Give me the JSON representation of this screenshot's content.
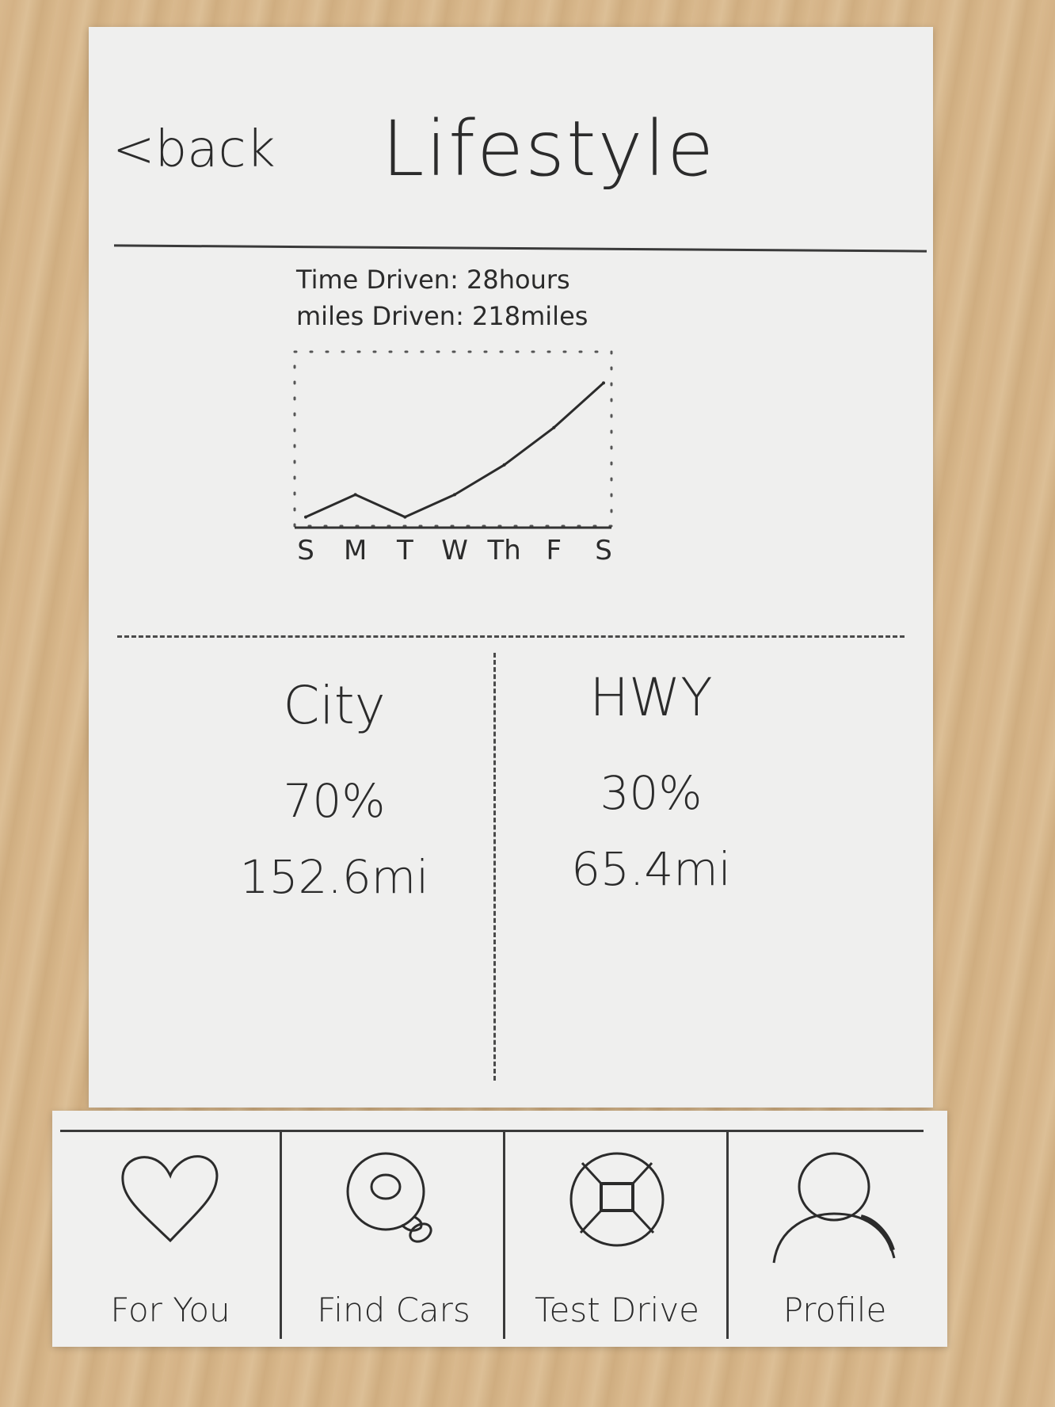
{
  "header": {
    "back_label": "<back",
    "title": "Lifestyle"
  },
  "stats": {
    "time_driven": "Time Driven: 28hours",
    "miles_driven": "miles Driven: 218miles"
  },
  "chart_data": {
    "type": "line",
    "categories": [
      "S",
      "M",
      "T",
      "W",
      "Th",
      "F",
      "S"
    ],
    "series": [
      {
        "values": [
          1,
          4,
          1,
          4,
          8,
          13,
          19
        ]
      }
    ],
    "ylim": [
      0,
      20
    ],
    "title": "",
    "xlabel": "",
    "ylabel": "",
    "grid": false
  },
  "split": {
    "city": {
      "label": "City",
      "percent": "70%",
      "miles": "152.6mi"
    },
    "hwy": {
      "label": "HWY",
      "percent": "30%",
      "miles": "65.4mi"
    }
  },
  "tabs": [
    {
      "label": "For You",
      "icon": "heart-icon"
    },
    {
      "label": "Find Cars",
      "icon": "search-icon"
    },
    {
      "label": "Test Drive",
      "icon": "steering-wheel-icon"
    },
    {
      "label": "Profile",
      "icon": "user-icon"
    }
  ]
}
